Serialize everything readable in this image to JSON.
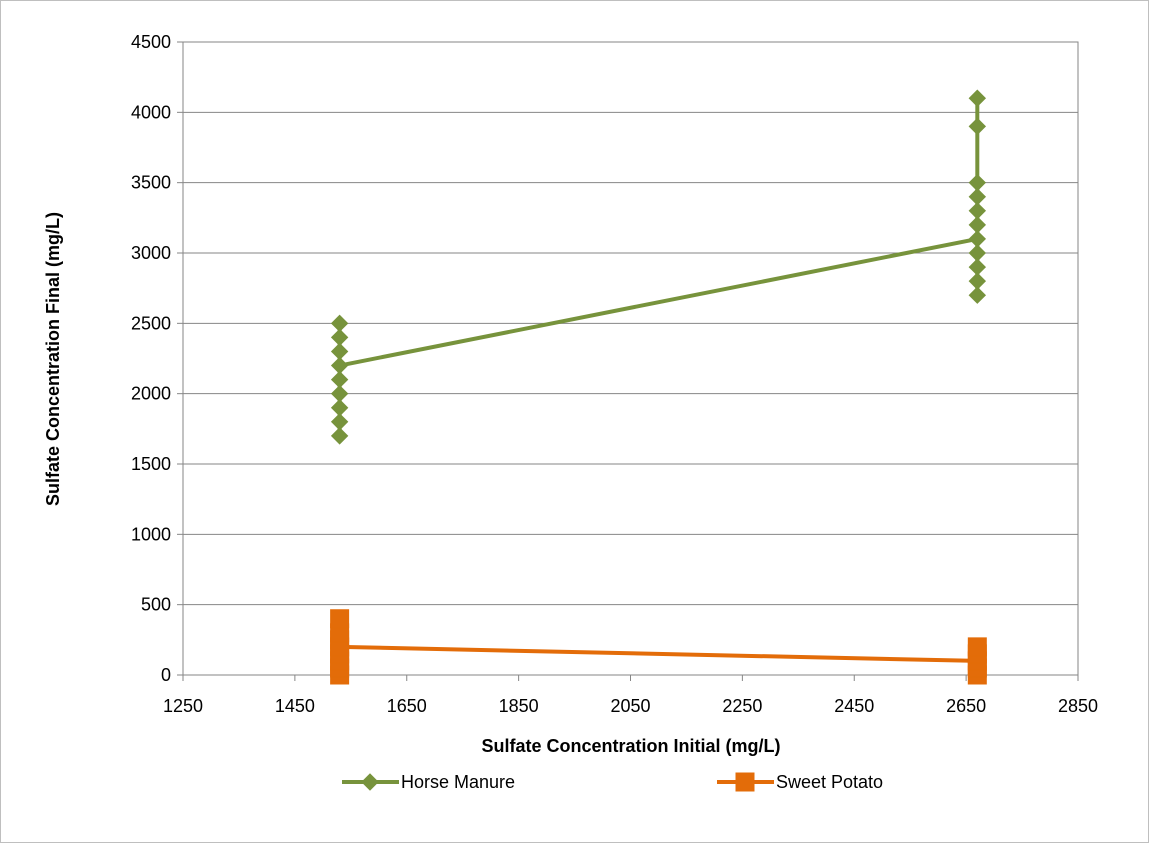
{
  "chart_data": {
    "type": "line",
    "xlabel": "Sulfate Concentration Initial (mg/L)",
    "ylabel": "Sulfate Concentration Final (mg/L)",
    "xlim": [
      1250,
      2850
    ],
    "ylim": [
      0,
      4500
    ],
    "xticks": [
      "1250",
      "1450",
      "1650",
      "1850",
      "2050",
      "2250",
      "2450",
      "2650",
      "2850"
    ],
    "yticks": [
      "0",
      "500",
      "1000",
      "1500",
      "2000",
      "2500",
      "3000",
      "3500",
      "4000",
      "4500"
    ],
    "grid": "horizontal",
    "legend_position": "bottom",
    "series": [
      {
        "name": "Horse Manure",
        "color": "#77933c",
        "marker": "diamond",
        "line": [
          [
            1530,
            2200
          ],
          [
            2670,
            3100
          ]
        ],
        "points": [
          [
            1530,
            1700
          ],
          [
            1530,
            1800
          ],
          [
            1530,
            1900
          ],
          [
            1530,
            2000
          ],
          [
            1530,
            2100
          ],
          [
            1530,
            2200
          ],
          [
            1530,
            2300
          ],
          [
            1530,
            2400
          ],
          [
            1530,
            2500
          ],
          [
            2670,
            2700
          ],
          [
            2670,
            2800
          ],
          [
            2670,
            2900
          ],
          [
            2670,
            3000
          ],
          [
            2670,
            3100
          ],
          [
            2670,
            3200
          ],
          [
            2670,
            3300
          ],
          [
            2670,
            3400
          ],
          [
            2670,
            3500
          ],
          [
            2670,
            3900
          ],
          [
            2670,
            4100
          ]
        ]
      },
      {
        "name": "Sweet Potato",
        "color": "#e36c09",
        "marker": "square",
        "line": [
          [
            1530,
            200
          ],
          [
            2670,
            100
          ]
        ],
        "points": [
          [
            1530,
            0
          ],
          [
            1530,
            50
          ],
          [
            1530,
            100
          ],
          [
            1530,
            150
          ],
          [
            1530,
            200
          ],
          [
            1530,
            250
          ],
          [
            1530,
            300
          ],
          [
            1530,
            400
          ],
          [
            2670,
            0
          ],
          [
            2670,
            50
          ],
          [
            2670,
            100
          ],
          [
            2670,
            150
          ],
          [
            2670,
            200
          ]
        ]
      }
    ]
  }
}
